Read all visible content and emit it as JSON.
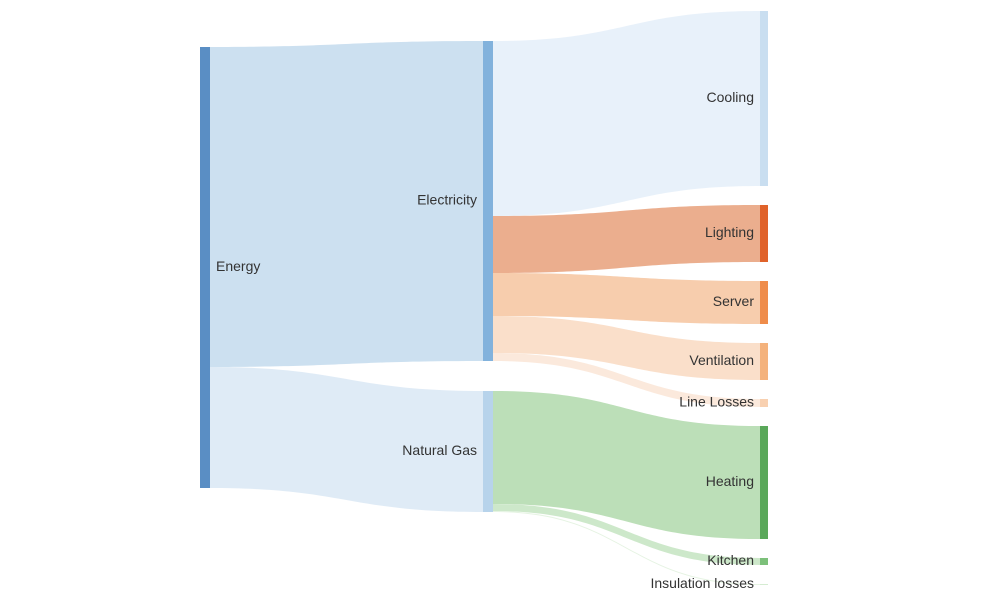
{
  "chart_data": {
    "type": "sankey",
    "nodes": [
      {
        "name": "Energy",
        "color": "#5a8ec4"
      },
      {
        "name": "Electricity",
        "color": "#82b2dc"
      },
      {
        "name": "Natural Gas",
        "color": "#b7d3eb"
      },
      {
        "name": "Cooling",
        "color": "#c9def0"
      },
      {
        "name": "Lighting",
        "color": "#e0622a"
      },
      {
        "name": "Server",
        "color": "#ef8c4a"
      },
      {
        "name": "Ventilation",
        "color": "#f4b27c"
      },
      {
        "name": "Line Losses",
        "color": "#f8d0b0"
      },
      {
        "name": "Heating",
        "color": "#5aa85a"
      },
      {
        "name": "Kitchen",
        "color": "#7cc07a"
      },
      {
        "name": "Insulation losses",
        "color": "#d5ecd2"
      }
    ],
    "links": [
      {
        "source": "Energy",
        "target": "Electricity",
        "value": 320,
        "color": "#c6ddee"
      },
      {
        "source": "Energy",
        "target": "Natural Gas",
        "value": 121,
        "color": "#dce9f5"
      },
      {
        "source": "Electricity",
        "target": "Cooling",
        "value": 175,
        "color": "#e6eff9"
      },
      {
        "source": "Electricity",
        "target": "Lighting",
        "value": 57,
        "color": "#e9a582"
      },
      {
        "source": "Electricity",
        "target": "Server",
        "value": 43,
        "color": "#f6c8a4"
      },
      {
        "source": "Electricity",
        "target": "Ventilation",
        "value": 37,
        "color": "#f9dcc4"
      },
      {
        "source": "Electricity",
        "target": "Line Losses",
        "value": 8,
        "color": "#fbe7d8"
      },
      {
        "source": "Natural Gas",
        "target": "Heating",
        "value": 113,
        "color": "#b5dbb0"
      },
      {
        "source": "Natural Gas",
        "target": "Kitchen",
        "value": 7,
        "color": "#c8e5c4"
      },
      {
        "source": "Natural Gas",
        "target": "Insulation losses",
        "value": 1,
        "color": "#e2f2df"
      }
    ]
  }
}
